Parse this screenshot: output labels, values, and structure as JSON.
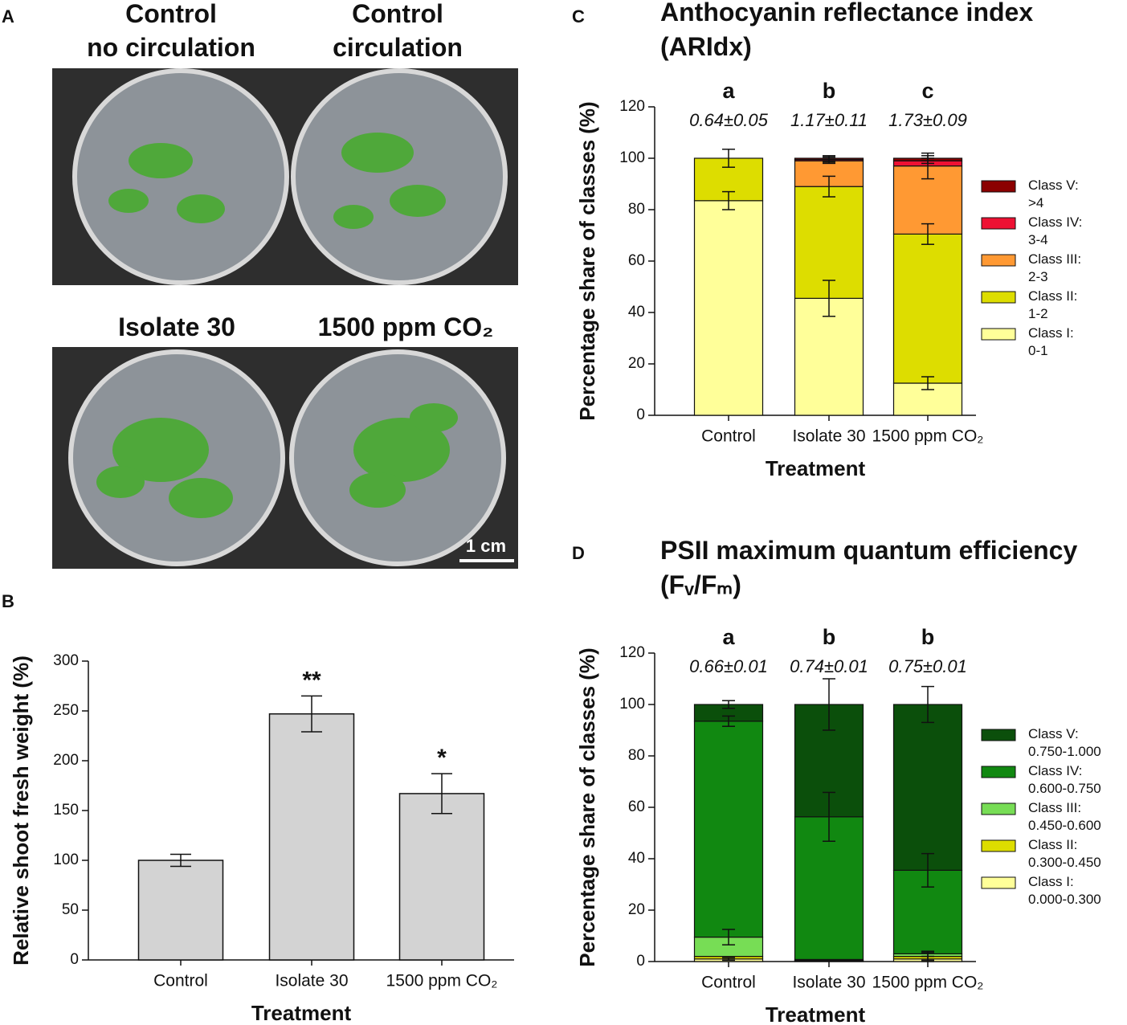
{
  "photo_panel": {
    "label": "A",
    "captions": [
      "Control\nno circulation",
      "Control\ncirculation",
      "Isolate 30",
      "1500 ppm CO₂"
    ],
    "scale_bar": "1 cm"
  },
  "chart_data": [
    {
      "type": "bar",
      "panel": "B",
      "categories": [
        "Control",
        "Isolate 30",
        "1500 ppm CO₂"
      ],
      "values": [
        100,
        247,
        167
      ],
      "errors": [
        6,
        18,
        20
      ],
      "significance": [
        null,
        "**",
        "*"
      ],
      "color": "#d3d3d3",
      "xlabel": "Treatment",
      "ylabel": "Relative shoot fresh weight (%)",
      "ylim": [
        0,
        300
      ],
      "yticks": [
        0,
        50,
        100,
        150,
        200,
        250,
        300
      ]
    },
    {
      "type": "stacked_bar",
      "panel": "C",
      "title": "Anthocyanin reflectance index\n(ARIdx)",
      "categories": [
        "Control",
        "Isolate 30",
        "1500 ppm CO₂"
      ],
      "group_letters": [
        "a",
        "b",
        "c"
      ],
      "mean_labels": [
        "0.64±0.05",
        "1.17±0.11",
        "1.73±0.09"
      ],
      "series": [
        {
          "name": "Class I:\n0-1",
          "color": "#ffff99",
          "values": [
            83.5,
            45.5,
            12.5
          ],
          "errors": [
            3.5,
            7,
            2.5
          ]
        },
        {
          "name": "Class II:\n1-2",
          "color": "#dddd00",
          "values": [
            16.5,
            43.5,
            58
          ],
          "errors": [
            3.5,
            4,
            4
          ]
        },
        {
          "name": "Class III:\n2-3",
          "color": "#ff9933",
          "values": [
            0,
            10,
            26.5
          ],
          "errors": [
            null,
            1,
            5
          ]
        },
        {
          "name": "Class IV:\n3-4",
          "color": "#ee1133",
          "values": [
            0,
            0.5,
            2
          ],
          "errors": [
            null,
            1,
            1
          ]
        },
        {
          "name": "Class V:\n>4",
          "color": "#8b0000",
          "values": [
            0,
            0.5,
            1
          ],
          "errors": [
            null,
            1,
            1
          ]
        }
      ],
      "xlabel": "Treatment",
      "ylabel": "Percentage share of classes (%)",
      "ylim": [
        0,
        120
      ],
      "yticks": [
        0,
        20,
        40,
        60,
        80,
        100,
        120
      ]
    },
    {
      "type": "stacked_bar",
      "panel": "D",
      "title": "PSII maximum quantum efficiency\n(Fᵥ/Fₘ)",
      "categories": [
        "Control",
        "Isolate 30",
        "1500 ppm CO₂"
      ],
      "group_letters": [
        "a",
        "b",
        "b"
      ],
      "mean_labels": [
        "0.66±0.01",
        "0.74±0.01",
        "0.75±0.01"
      ],
      "series": [
        {
          "name": "Class I:\n0.000-0.300",
          "color": "#ffff99",
          "values": [
            1,
            0.3,
            1
          ],
          "errors": [
            0.5,
            null,
            1
          ]
        },
        {
          "name": "Class II:\n0.300-0.450",
          "color": "#dddd00",
          "values": [
            1,
            0.2,
            1
          ],
          "errors": [
            null,
            null,
            1.5
          ]
        },
        {
          "name": "Class III:\n0.450-0.600",
          "color": "#77dd55",
          "values": [
            7.5,
            0.3,
            1
          ],
          "errors": [
            3,
            null,
            1
          ]
        },
        {
          "name": "Class IV:\n0.600-0.750",
          "color": "#118811",
          "values": [
            84,
            55.5,
            32.5
          ],
          "errors": [
            2,
            9.5,
            6.5
          ]
        },
        {
          "name": "Class V:\n0.750-1.000",
          "color": "#0b4f0b",
          "values": [
            6.5,
            43.7,
            64.5
          ],
          "errors": [
            1.5,
            10,
            7
          ]
        }
      ],
      "xlabel": "Treatment",
      "ylabel": "Percentage share of classes (%)",
      "ylim": [
        0,
        120
      ],
      "yticks": [
        0,
        20,
        40,
        60,
        80,
        100,
        120
      ]
    }
  ]
}
